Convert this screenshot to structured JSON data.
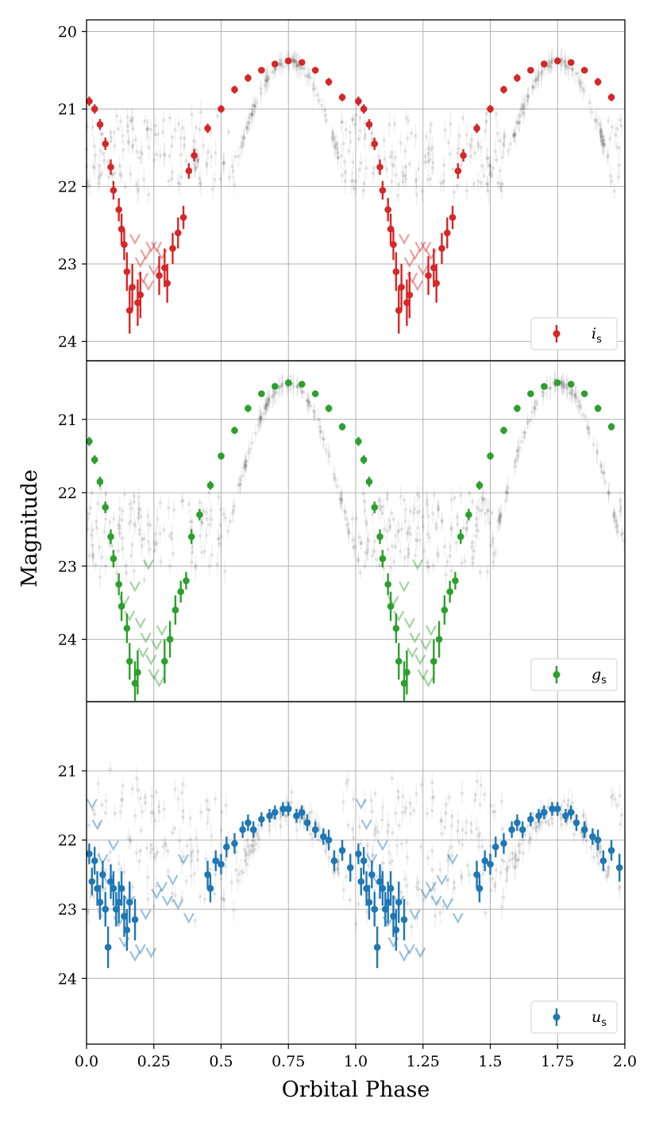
{
  "chart_data": [
    {
      "type": "scatter",
      "panel": "top",
      "band_label": "i",
      "band_subscript": "s",
      "color": "#d62728",
      "ylim": [
        24.25,
        19.85
      ],
      "y_inverted": true,
      "yticks": [
        20,
        21,
        22,
        23,
        24
      ],
      "ytick_labels": [
        "20",
        "21",
        "22",
        "23",
        "24"
      ],
      "xlim": [
        0.0,
        2.0
      ],
      "grid": true,
      "legend_position": "lower-right",
      "curve": {
        "max_mag": 20.38,
        "max_phase": 0.75,
        "half_amplitude": 2.0,
        "profile": "cosine"
      },
      "points": [
        {
          "x": 0.01,
          "y": 20.9,
          "err": 0.06
        },
        {
          "x": 0.03,
          "y": 21.0,
          "err": 0.06
        },
        {
          "x": 0.05,
          "y": 21.2,
          "err": 0.07
        },
        {
          "x": 0.07,
          "y": 21.45,
          "err": 0.08
        },
        {
          "x": 0.09,
          "y": 21.75,
          "err": 0.1
        },
        {
          "x": 0.1,
          "y": 22.05,
          "err": 0.12
        },
        {
          "x": 0.12,
          "y": 22.3,
          "err": 0.15
        },
        {
          "x": 0.13,
          "y": 22.55,
          "err": 0.2
        },
        {
          "x": 0.14,
          "y": 22.75,
          "err": 0.2
        },
        {
          "x": 0.15,
          "y": 23.1,
          "err": 0.25
        },
        {
          "x": 0.16,
          "y": 23.6,
          "err": 0.3
        },
        {
          "x": 0.17,
          "y": 23.3,
          "err": 0.3
        },
        {
          "x": 0.19,
          "y": 23.5,
          "err": 0.3
        },
        {
          "x": 0.2,
          "y": 23.4,
          "err": 0.3
        },
        {
          "x": 0.27,
          "y": 23.15,
          "err": 0.25
        },
        {
          "x": 0.29,
          "y": 23.05,
          "err": 0.25
        },
        {
          "x": 0.3,
          "y": 23.25,
          "err": 0.25
        },
        {
          "x": 0.32,
          "y": 22.8,
          "err": 0.2
        },
        {
          "x": 0.34,
          "y": 22.6,
          "err": 0.2
        },
        {
          "x": 0.36,
          "y": 22.4,
          "err": 0.15
        },
        {
          "x": 0.38,
          "y": 21.8,
          "err": 0.1
        },
        {
          "x": 0.4,
          "y": 21.6,
          "err": 0.08
        },
        {
          "x": 0.45,
          "y": 21.25,
          "err": 0.06
        },
        {
          "x": 0.5,
          "y": 21.0,
          "err": 0.05
        },
        {
          "x": 0.55,
          "y": 20.75,
          "err": 0.05
        },
        {
          "x": 0.6,
          "y": 20.6,
          "err": 0.05
        },
        {
          "x": 0.65,
          "y": 20.5,
          "err": 0.04
        },
        {
          "x": 0.7,
          "y": 20.42,
          "err": 0.04
        },
        {
          "x": 0.75,
          "y": 20.38,
          "err": 0.04
        },
        {
          "x": 0.8,
          "y": 20.4,
          "err": 0.04
        },
        {
          "x": 0.85,
          "y": 20.5,
          "err": 0.04
        },
        {
          "x": 0.9,
          "y": 20.65,
          "err": 0.05
        },
        {
          "x": 0.95,
          "y": 20.85,
          "err": 0.05
        }
      ],
      "upper_limits": [
        {
          "x": 0.18,
          "y": 22.7
        },
        {
          "x": 0.2,
          "y": 23.0
        },
        {
          "x": 0.21,
          "y": 23.2
        },
        {
          "x": 0.22,
          "y": 22.9
        },
        {
          "x": 0.23,
          "y": 23.3
        },
        {
          "x": 0.24,
          "y": 22.8
        },
        {
          "x": 0.25,
          "y": 23.1
        },
        {
          "x": 0.26,
          "y": 22.8
        },
        {
          "x": 0.28,
          "y": 22.9
        }
      ]
    },
    {
      "type": "scatter",
      "panel": "middle",
      "band_label": "g",
      "band_subscript": "s",
      "color": "#2ca02c",
      "ylim": [
        24.85,
        20.2
      ],
      "y_inverted": true,
      "yticks": [
        21,
        22,
        23,
        24
      ],
      "ytick_labels": [
        "21",
        "22",
        "23",
        "24"
      ],
      "xlim": [
        0.0,
        2.0
      ],
      "grid": true,
      "legend_position": "lower-right",
      "curve": {
        "max_mag": 20.5,
        "max_phase": 0.75,
        "half_amplitude": 2.4,
        "profile": "cosine"
      },
      "points": [
        {
          "x": 0.01,
          "y": 21.3,
          "err": 0.06
        },
        {
          "x": 0.03,
          "y": 21.55,
          "err": 0.06
        },
        {
          "x": 0.05,
          "y": 21.85,
          "err": 0.07
        },
        {
          "x": 0.07,
          "y": 22.2,
          "err": 0.08
        },
        {
          "x": 0.09,
          "y": 22.6,
          "err": 0.1
        },
        {
          "x": 0.1,
          "y": 22.9,
          "err": 0.12
        },
        {
          "x": 0.12,
          "y": 23.25,
          "err": 0.15
        },
        {
          "x": 0.13,
          "y": 23.55,
          "err": 0.2
        },
        {
          "x": 0.15,
          "y": 23.85,
          "err": 0.2
        },
        {
          "x": 0.16,
          "y": 24.3,
          "err": 0.25
        },
        {
          "x": 0.18,
          "y": 24.6,
          "err": 0.3
        },
        {
          "x": 0.19,
          "y": 24.45,
          "err": 0.3
        },
        {
          "x": 0.29,
          "y": 24.3,
          "err": 0.3
        },
        {
          "x": 0.31,
          "y": 24.0,
          "err": 0.25
        },
        {
          "x": 0.33,
          "y": 23.6,
          "err": 0.2
        },
        {
          "x": 0.35,
          "y": 23.35,
          "err": 0.15
        },
        {
          "x": 0.37,
          "y": 23.2,
          "err": 0.12
        },
        {
          "x": 0.39,
          "y": 22.6,
          "err": 0.1
        },
        {
          "x": 0.42,
          "y": 22.3,
          "err": 0.08
        },
        {
          "x": 0.46,
          "y": 21.9,
          "err": 0.06
        },
        {
          "x": 0.5,
          "y": 21.5,
          "err": 0.05
        },
        {
          "x": 0.55,
          "y": 21.15,
          "err": 0.05
        },
        {
          "x": 0.6,
          "y": 20.85,
          "err": 0.05
        },
        {
          "x": 0.65,
          "y": 20.65,
          "err": 0.04
        },
        {
          "x": 0.7,
          "y": 20.55,
          "err": 0.04
        },
        {
          "x": 0.75,
          "y": 20.5,
          "err": 0.04
        },
        {
          "x": 0.8,
          "y": 20.52,
          "err": 0.04
        },
        {
          "x": 0.85,
          "y": 20.65,
          "err": 0.04
        },
        {
          "x": 0.9,
          "y": 20.85,
          "err": 0.05
        },
        {
          "x": 0.95,
          "y": 21.1,
          "err": 0.05
        }
      ],
      "upper_limits": [
        {
          "x": 0.14,
          "y": 23.5
        },
        {
          "x": 0.16,
          "y": 23.7
        },
        {
          "x": 0.18,
          "y": 23.3
        },
        {
          "x": 0.2,
          "y": 23.8
        },
        {
          "x": 0.21,
          "y": 24.2
        },
        {
          "x": 0.22,
          "y": 24.0
        },
        {
          "x": 0.23,
          "y": 23.0
        },
        {
          "x": 0.24,
          "y": 24.3
        },
        {
          "x": 0.25,
          "y": 24.5
        },
        {
          "x": 0.26,
          "y": 24.1
        },
        {
          "x": 0.27,
          "y": 24.6
        },
        {
          "x": 0.28,
          "y": 23.9
        }
      ]
    },
    {
      "type": "scatter",
      "panel": "bottom",
      "band_label": "u",
      "band_subscript": "s",
      "color": "#1f77b4",
      "ylim": [
        24.95,
        20.0
      ],
      "y_inverted": true,
      "yticks": [
        21,
        22,
        23,
        24
      ],
      "ytick_labels": [
        "21",
        "22",
        "23",
        "24"
      ],
      "xlim": [
        0.0,
        2.0
      ],
      "xticks": [
        0.0,
        0.25,
        0.5,
        0.75,
        1.0,
        1.25,
        1.5,
        1.75,
        2.0
      ],
      "xtick_labels": [
        "0.0",
        "0.25",
        "0.5",
        "0.75",
        "1.0",
        "1.25",
        "1.5",
        "1.75",
        "2.0"
      ],
      "grid": true,
      "legend_position": "lower-right",
      "curve": {
        "max_mag": 21.6,
        "max_phase": 0.75,
        "half_amplitude": 1.4,
        "profile": "cosine"
      },
      "points": [
        {
          "x": 0.01,
          "y": 22.2,
          "err": 0.15
        },
        {
          "x": 0.02,
          "y": 22.6,
          "err": 0.2
        },
        {
          "x": 0.03,
          "y": 22.3,
          "err": 0.2
        },
        {
          "x": 0.04,
          "y": 22.7,
          "err": 0.25
        },
        {
          "x": 0.05,
          "y": 22.9,
          "err": 0.25
        },
        {
          "x": 0.06,
          "y": 22.5,
          "err": 0.2
        },
        {
          "x": 0.07,
          "y": 23.0,
          "err": 0.25
        },
        {
          "x": 0.08,
          "y": 23.55,
          "err": 0.3
        },
        {
          "x": 0.09,
          "y": 22.6,
          "err": 0.25
        },
        {
          "x": 0.1,
          "y": 22.7,
          "err": 0.25
        },
        {
          "x": 0.11,
          "y": 23.0,
          "err": 0.25
        },
        {
          "x": 0.12,
          "y": 22.9,
          "err": 0.3
        },
        {
          "x": 0.13,
          "y": 22.7,
          "err": 0.25
        },
        {
          "x": 0.14,
          "y": 23.1,
          "err": 0.3
        },
        {
          "x": 0.15,
          "y": 23.3,
          "err": 0.3
        },
        {
          "x": 0.16,
          "y": 22.9,
          "err": 0.3
        },
        {
          "x": 0.18,
          "y": 23.15,
          "err": 0.3
        },
        {
          "x": 0.45,
          "y": 22.5,
          "err": 0.2
        },
        {
          "x": 0.46,
          "y": 22.7,
          "err": 0.2
        },
        {
          "x": 0.48,
          "y": 22.3,
          "err": 0.15
        },
        {
          "x": 0.5,
          "y": 22.35,
          "err": 0.15
        },
        {
          "x": 0.52,
          "y": 22.1,
          "err": 0.15
        },
        {
          "x": 0.55,
          "y": 22.05,
          "err": 0.15
        },
        {
          "x": 0.58,
          "y": 21.85,
          "err": 0.12
        },
        {
          "x": 0.6,
          "y": 21.75,
          "err": 0.12
        },
        {
          "x": 0.62,
          "y": 21.85,
          "err": 0.12
        },
        {
          "x": 0.65,
          "y": 21.7,
          "err": 0.1
        },
        {
          "x": 0.68,
          "y": 21.65,
          "err": 0.1
        },
        {
          "x": 0.7,
          "y": 21.6,
          "err": 0.1
        },
        {
          "x": 0.73,
          "y": 21.55,
          "err": 0.1
        },
        {
          "x": 0.75,
          "y": 21.55,
          "err": 0.1
        },
        {
          "x": 0.78,
          "y": 21.65,
          "err": 0.1
        },
        {
          "x": 0.8,
          "y": 21.6,
          "err": 0.1
        },
        {
          "x": 0.82,
          "y": 21.75,
          "err": 0.12
        },
        {
          "x": 0.85,
          "y": 21.85,
          "err": 0.12
        },
        {
          "x": 0.88,
          "y": 21.95,
          "err": 0.12
        },
        {
          "x": 0.9,
          "y": 22.0,
          "err": 0.15
        },
        {
          "x": 0.92,
          "y": 22.3,
          "err": 0.15
        },
        {
          "x": 0.95,
          "y": 22.15,
          "err": 0.15
        },
        {
          "x": 0.98,
          "y": 22.4,
          "err": 0.2
        }
      ],
      "upper_limits": [
        {
          "x": 0.02,
          "y": 21.5
        },
        {
          "x": 0.04,
          "y": 21.8
        },
        {
          "x": 0.06,
          "y": 22.3
        },
        {
          "x": 0.08,
          "y": 22.6
        },
        {
          "x": 0.1,
          "y": 22.1
        },
        {
          "x": 0.12,
          "y": 23.2
        },
        {
          "x": 0.14,
          "y": 23.5
        },
        {
          "x": 0.16,
          "y": 22.9
        },
        {
          "x": 0.18,
          "y": 23.7
        },
        {
          "x": 0.2,
          "y": 23.6
        },
        {
          "x": 0.22,
          "y": 23.1
        },
        {
          "x": 0.24,
          "y": 23.65
        },
        {
          "x": 0.26,
          "y": 22.8
        },
        {
          "x": 0.28,
          "y": 22.7
        },
        {
          "x": 0.3,
          "y": 22.9
        },
        {
          "x": 0.32,
          "y": 22.6
        },
        {
          "x": 0.34,
          "y": 22.95
        },
        {
          "x": 0.36,
          "y": 22.3
        },
        {
          "x": 0.38,
          "y": 23.15
        }
      ]
    }
  ],
  "axes": {
    "xlabel": "Orbital Phase",
    "ylabel": "Magnitude"
  },
  "colors": {
    "background_data": "#000000",
    "grid": "#b0b0b0",
    "frame": "#000000"
  }
}
